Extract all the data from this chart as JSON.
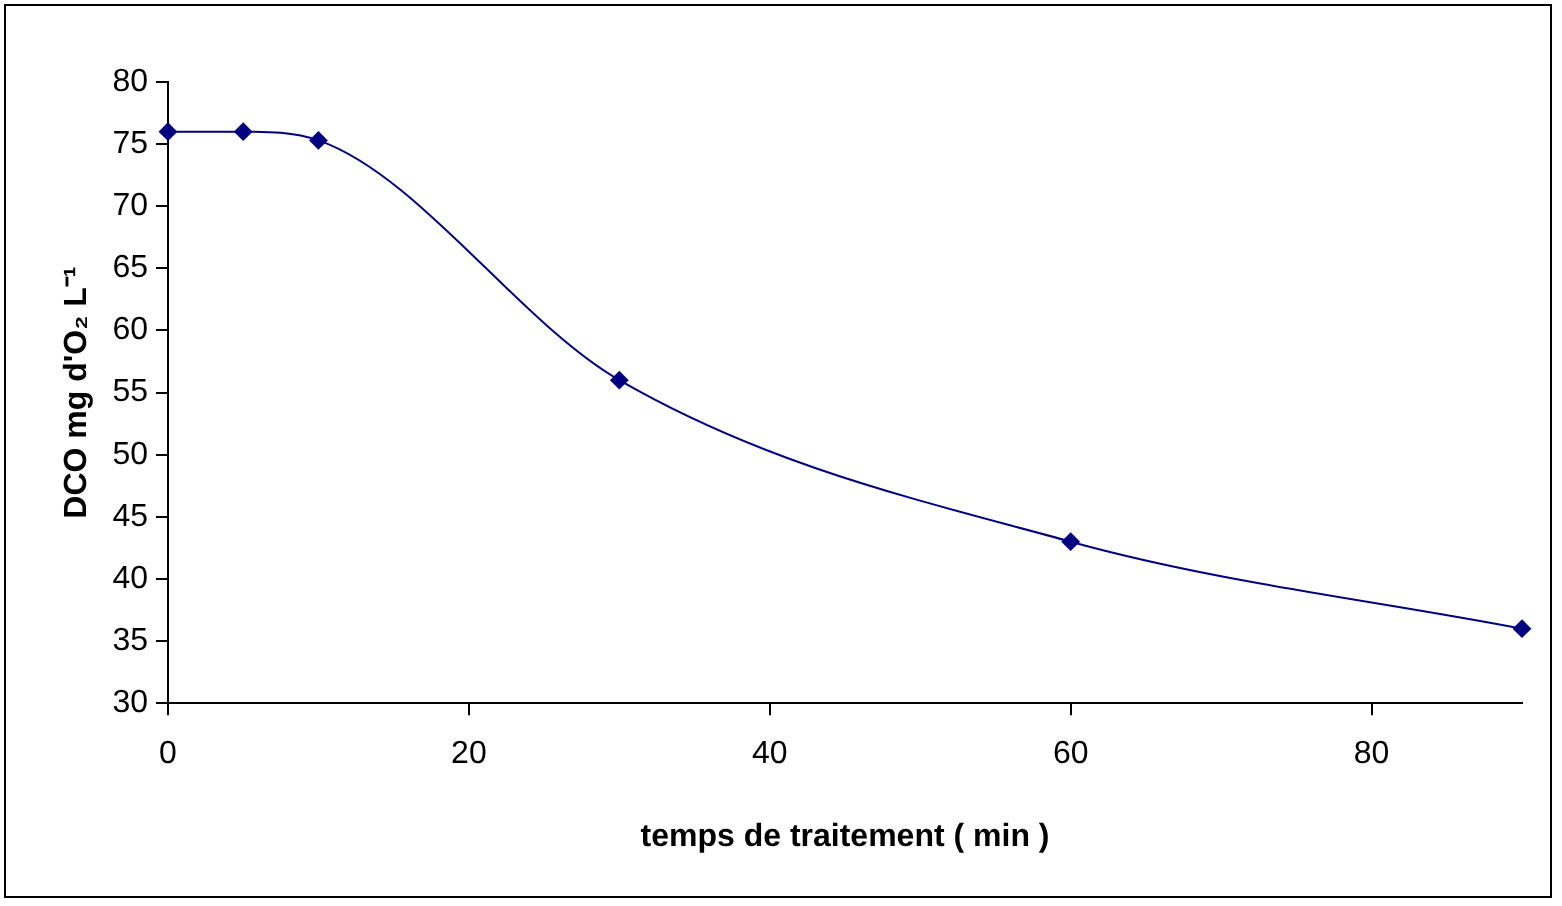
{
  "chart_data": {
    "type": "line",
    "xlabel": "temps de traitement ( min )",
    "ylabel": "DCO mg d'O₂ L⁻¹",
    "x": [
      0,
      5,
      10,
      30,
      60,
      90
    ],
    "series": [
      {
        "color": "#000080",
        "values": [
          76,
          76,
          75.3,
          56,
          43,
          36
        ]
      }
    ],
    "xlim": [
      0,
      90
    ],
    "xticks": [
      0,
      20,
      40,
      60,
      80
    ],
    "ylim": [
      30,
      80
    ],
    "yticks": [
      30,
      35,
      40,
      45,
      50,
      55,
      60,
      65,
      70,
      75,
      80
    ],
    "grid": false,
    "legend": false,
    "marker": "diamond",
    "line_style": "solid"
  }
}
